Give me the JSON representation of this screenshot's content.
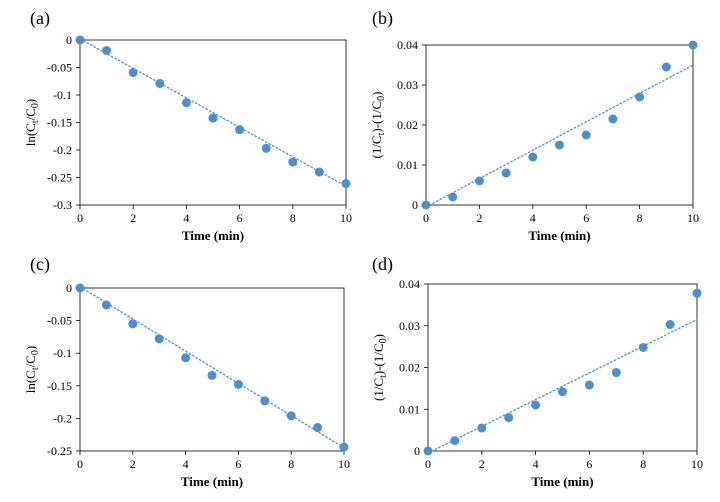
{
  "accent_color": "#4a90d0",
  "chart_data": [
    {
      "panel_label": "(a)",
      "type": "scatter",
      "xlabel": "Time (min)",
      "ylabel": "ln(Cₜ/C₀)",
      "xlim": [
        0,
        10
      ],
      "ylim": [
        -0.3,
        0
      ],
      "xticks": [
        "0",
        "2",
        "4",
        "6",
        "8",
        "10"
      ],
      "yticks": [
        "0",
        "-0.05",
        "-0.1",
        "-0.15",
        "-0.2",
        "-0.25",
        "-0.3"
      ],
      "x": [
        0,
        1,
        2,
        3,
        4,
        5,
        6,
        7,
        8,
        9,
        10
      ],
      "y": [
        0,
        -0.019,
        -0.059,
        -0.079,
        -0.114,
        -0.142,
        -0.163,
        -0.197,
        -0.222,
        -0.24,
        -0.261
      ],
      "trendline": {
        "style": "dotted",
        "x": [
          0,
          10
        ],
        "y": [
          0.002,
          -0.266
        ]
      },
      "grid": false
    },
    {
      "panel_label": "(b)",
      "type": "scatter",
      "xlabel": "Time (min)",
      "ylabel": "(1/Cₜ)-(1/C₀)",
      "xlim": [
        0,
        10
      ],
      "ylim": [
        0,
        0.04
      ],
      "xticks": [
        "0",
        "2",
        "4",
        "6",
        "8",
        "10"
      ],
      "yticks": [
        "0",
        "0.01",
        "0.02",
        "0.03",
        "0.04"
      ],
      "x": [
        0,
        1,
        2,
        3,
        4,
        5,
        6,
        7,
        8,
        9,
        10
      ],
      "y": [
        0,
        0.002,
        0.006,
        0.008,
        0.012,
        0.015,
        0.0175,
        0.0215,
        0.027,
        0.0345,
        0.04
      ],
      "trendline": {
        "style": "dotted",
        "x": [
          0,
          10
        ],
        "y": [
          -0.0005,
          0.035
        ]
      },
      "grid": false
    },
    {
      "panel_label": "(c)",
      "type": "scatter",
      "xlabel": "Time (min)",
      "ylabel": "ln(Cₜ/C₀)",
      "xlim": [
        0,
        10
      ],
      "ylim": [
        -0.25,
        0
      ],
      "xticks": [
        "0",
        "2",
        "4",
        "6",
        "8",
        "10"
      ],
      "yticks": [
        "0",
        "-0.05",
        "-0.1",
        "-0.15",
        "-0.2",
        "-0.25"
      ],
      "x": [
        0,
        1,
        2,
        3,
        4,
        5,
        6,
        7,
        8,
        9,
        10
      ],
      "y": [
        0,
        -0.026,
        -0.055,
        -0.078,
        -0.107,
        -0.134,
        -0.148,
        -0.173,
        -0.196,
        -0.214,
        -0.244
      ],
      "trendline": {
        "style": "dotted",
        "x": [
          0,
          10
        ],
        "y": [
          0.002,
          -0.245
        ]
      },
      "grid": false
    },
    {
      "panel_label": "(d)",
      "type": "scatter",
      "xlabel": "Time (min)",
      "ylabel": "(1/Cₜ)-(1/C₀)",
      "xlim": [
        0,
        10
      ],
      "ylim": [
        0,
        0.04
      ],
      "xticks": [
        "0",
        "2",
        "4",
        "6",
        "8",
        "10"
      ],
      "yticks": [
        "0",
        "0.01",
        "0.02",
        "0.03",
        "0.04"
      ],
      "x": [
        0,
        1,
        2,
        3,
        4,
        5,
        6,
        7,
        8,
        9,
        10
      ],
      "y": [
        0,
        0.0025,
        0.0055,
        0.008,
        0.011,
        0.0142,
        0.0158,
        0.0188,
        0.0248,
        0.0303,
        0.0378
      ],
      "trendline": {
        "style": "dotted",
        "x": [
          0,
          10
        ],
        "y": [
          -0.0005,
          0.0315
        ]
      },
      "grid": false
    }
  ]
}
